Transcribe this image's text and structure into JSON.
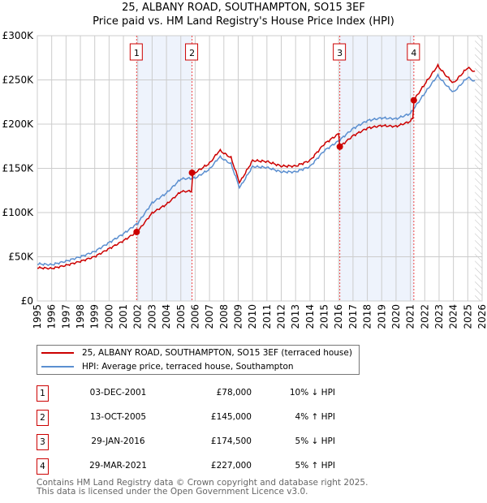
{
  "chart_data": {
    "type": "line",
    "title": "25, ALBANY ROAD, SOUTHAMPTON, SO15 3EF",
    "subtitle": "Price paid vs. HM Land Registry's House Price Index (HPI)",
    "xlim": [
      1995,
      2026
    ],
    "ylim": [
      0,
      300000
    ],
    "x_ticks": [
      "1995",
      "1996",
      "1997",
      "1998",
      "1999",
      "2000",
      "2001",
      "2002",
      "2003",
      "2004",
      "2005",
      "2006",
      "2007",
      "2008",
      "2009",
      "2010",
      "2011",
      "2012",
      "2013",
      "2014",
      "2015",
      "2016",
      "2017",
      "2018",
      "2019",
      "2020",
      "2021",
      "2022",
      "2023",
      "2024",
      "2025",
      "2026"
    ],
    "y_ticks": [
      {
        "v": 0,
        "label": "£0"
      },
      {
        "v": 50000,
        "label": "£50K"
      },
      {
        "v": 100000,
        "label": "£100K"
      },
      {
        "v": 150000,
        "label": "£150K"
      },
      {
        "v": 200000,
        "label": "£200K"
      },
      {
        "v": 250000,
        "label": "£250K"
      },
      {
        "v": 300000,
        "label": "£300K"
      }
    ],
    "grid": true,
    "forecast_hatch_from": 2025.5,
    "series": [
      {
        "name": "25, ALBANY ROAD, SOUTHAMPTON, SO15 3EF (terraced house)",
        "color": "#cc0000",
        "derived": "indexed from sales"
      },
      {
        "name": "HPI: Average price, terraced house, Southampton",
        "color": "#5b8fd0",
        "x": [
          1995,
          1996,
          1997,
          1998,
          1999,
          2000,
          2001,
          2002,
          2003,
          2004,
          2005,
          2006,
          2007,
          2007.7,
          2008.5,
          2009.1,
          2010,
          2011,
          2012,
          2013,
          2014,
          2015,
          2016,
          2017,
          2018,
          2019,
          2020,
          2021,
          2022,
          2022.9,
          2023.5,
          2024,
          2025,
          2025.5
        ],
        "values": [
          42000,
          41000,
          45000,
          50000,
          56000,
          66000,
          76000,
          88000,
          111000,
          122000,
          138000,
          139000,
          149000,
          163000,
          155000,
          128000,
          152000,
          151000,
          146000,
          146000,
          152000,
          170000,
          181000,
          195000,
          204000,
          207000,
          206000,
          212000,
          235000,
          255000,
          244000,
          236000,
          253000,
          248000
        ]
      }
    ],
    "sales": [
      {
        "n": "1",
        "x": 2001.92,
        "date": "03-DEC-2001",
        "price_label": "£78,000",
        "price": 78000,
        "hpi": "10% ↓ HPI"
      },
      {
        "n": "2",
        "x": 2005.78,
        "date": "13-OCT-2005",
        "price_label": "£145,000",
        "price": 145000,
        "hpi": "4% ↑ HPI"
      },
      {
        "n": "3",
        "x": 2016.08,
        "date": "29-JAN-2016",
        "price_label": "£174,500",
        "price": 174500,
        "hpi": "5% ↓ HPI"
      },
      {
        "n": "4",
        "x": 2021.24,
        "date": "29-MAR-2021",
        "price_label": "£227,000",
        "price": 227000,
        "hpi": "5% ↑ HPI"
      }
    ],
    "shaded_periods": [
      [
        2001.92,
        2005.78
      ],
      [
        2016.08,
        2021.24
      ]
    ]
  },
  "footer": {
    "line1": "Contains HM Land Registry data © Crown copyright and database right 2025.",
    "line2": "This data is licensed under the Open Government Licence v3.0."
  }
}
